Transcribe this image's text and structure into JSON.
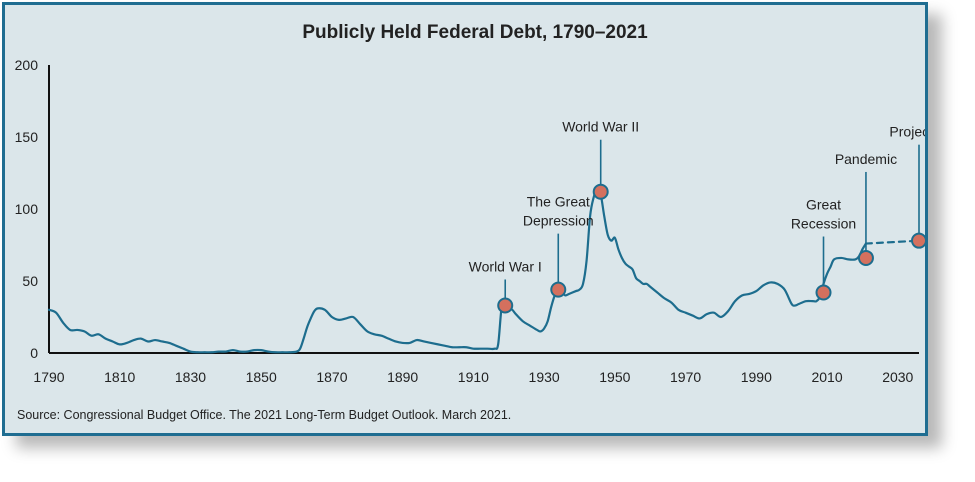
{
  "chart_data": {
    "type": "line",
    "title": "Publicly Held Federal Debt, 1790–2021",
    "xlabel": "",
    "ylabel": "",
    "xlim": [
      1790,
      2036
    ],
    "ylim": [
      0,
      200
    ],
    "x_ticks": [
      1790,
      1810,
      1830,
      1850,
      1870,
      1890,
      1910,
      1930,
      1950,
      1970,
      1990,
      2010,
      2030
    ],
    "y_ticks": [
      0,
      50,
      100,
      150,
      200
    ],
    "series": [
      {
        "name": "Publicly held debt",
        "style": "solid",
        "x": [
          1790,
          1792,
          1794,
          1796,
          1798,
          1800,
          1802,
          1804,
          1806,
          1808,
          1810,
          1812,
          1814,
          1816,
          1818,
          1820,
          1822,
          1824,
          1826,
          1828,
          1830,
          1832,
          1834,
          1836,
          1838,
          1840,
          1842,
          1844,
          1846,
          1848,
          1850,
          1852,
          1854,
          1856,
          1858,
          1860,
          1861,
          1862,
          1863,
          1864,
          1865,
          1866,
          1868,
          1870,
          1872,
          1874,
          1876,
          1878,
          1880,
          1882,
          1884,
          1886,
          1888,
          1890,
          1892,
          1894,
          1896,
          1898,
          1900,
          1902,
          1904,
          1906,
          1908,
          1910,
          1912,
          1914,
          1916,
          1917,
          1918,
          1919,
          1920,
          1921,
          1922,
          1924,
          1926,
          1928,
          1929,
          1930,
          1931,
          1932,
          1933,
          1934,
          1935,
          1936,
          1937,
          1938,
          1939,
          1940,
          1941,
          1942,
          1943,
          1944,
          1945,
          1946,
          1947,
          1948,
          1949,
          1950,
          1951,
          1952,
          1953,
          1954,
          1955,
          1956,
          1957,
          1958,
          1959,
          1960,
          1962,
          1964,
          1966,
          1968,
          1970,
          1972,
          1974,
          1976,
          1978,
          1980,
          1982,
          1984,
          1986,
          1988,
          1990,
          1992,
          1994,
          1996,
          1998,
          2000,
          2001,
          2002,
          2004,
          2006,
          2007,
          2008,
          2009,
          2010,
          2011,
          2012,
          2014,
          2016,
          2018,
          2019,
          2020,
          2021
        ],
        "values": [
          30,
          28,
          21,
          16,
          16,
          15,
          12,
          13,
          10,
          8,
          6,
          7,
          9,
          10,
          8,
          9,
          8,
          7,
          5,
          3,
          1,
          0.5,
          0.5,
          0.5,
          1,
          1,
          2,
          1,
          1,
          2,
          2,
          1,
          0.5,
          0.5,
          0.5,
          1,
          3,
          10,
          18,
          24,
          29,
          31,
          30,
          25,
          23,
          24,
          25,
          20,
          15,
          13,
          12,
          10,
          8,
          7,
          7,
          9,
          8,
          7,
          6,
          5,
          4,
          4,
          4,
          3,
          3,
          3,
          3,
          6,
          32,
          35,
          31,
          30,
          27,
          22,
          19,
          16,
          15,
          17,
          22,
          32,
          40,
          44,
          42,
          40,
          41,
          42,
          43,
          44,
          48,
          64,
          95,
          108,
          114,
          110,
          95,
          82,
          78,
          80,
          72,
          66,
          62,
          60,
          58,
          52,
          50,
          48,
          48,
          46,
          42,
          38,
          35,
          30,
          28,
          26,
          24,
          27,
          28,
          25,
          29,
          36,
          40,
          41,
          43,
          47,
          49,
          48,
          44,
          34,
          33,
          34,
          36,
          36,
          36,
          39,
          48,
          55,
          60,
          65,
          66,
          65,
          65,
          67,
          72,
          76
        ]
      },
      {
        "name": "Projected",
        "style": "dashed",
        "x": [
          2021,
          2036
        ],
        "values": [
          76,
          78
        ]
      }
    ],
    "annotations": [
      {
        "label_lines": [
          "World War I"
        ],
        "x": 1919,
        "y": 33
      },
      {
        "label_lines": [
          "The Great",
          "Depression"
        ],
        "x": 1934,
        "y": 44
      },
      {
        "label_lines": [
          "World War II"
        ],
        "x": 1946,
        "y": 112
      },
      {
        "label_lines": [
          "Great",
          "Recession"
        ],
        "x": 2009,
        "y": 42
      },
      {
        "label_lines": [
          "Pandemic"
        ],
        "x": 2021,
        "y": 66
      },
      {
        "label_lines": [
          "Projected"
        ],
        "x": 2036,
        "y": 78
      }
    ],
    "source": "Source: Congressional Budget Office. The 2021 Long-Term Budget Outlook. March 2021.",
    "colors": {
      "line": "#1d6d8e",
      "marker": "#d4705e",
      "marker_stroke": "#1d6d8e",
      "axis": "#111111",
      "background": "#dbe6ea"
    }
  }
}
